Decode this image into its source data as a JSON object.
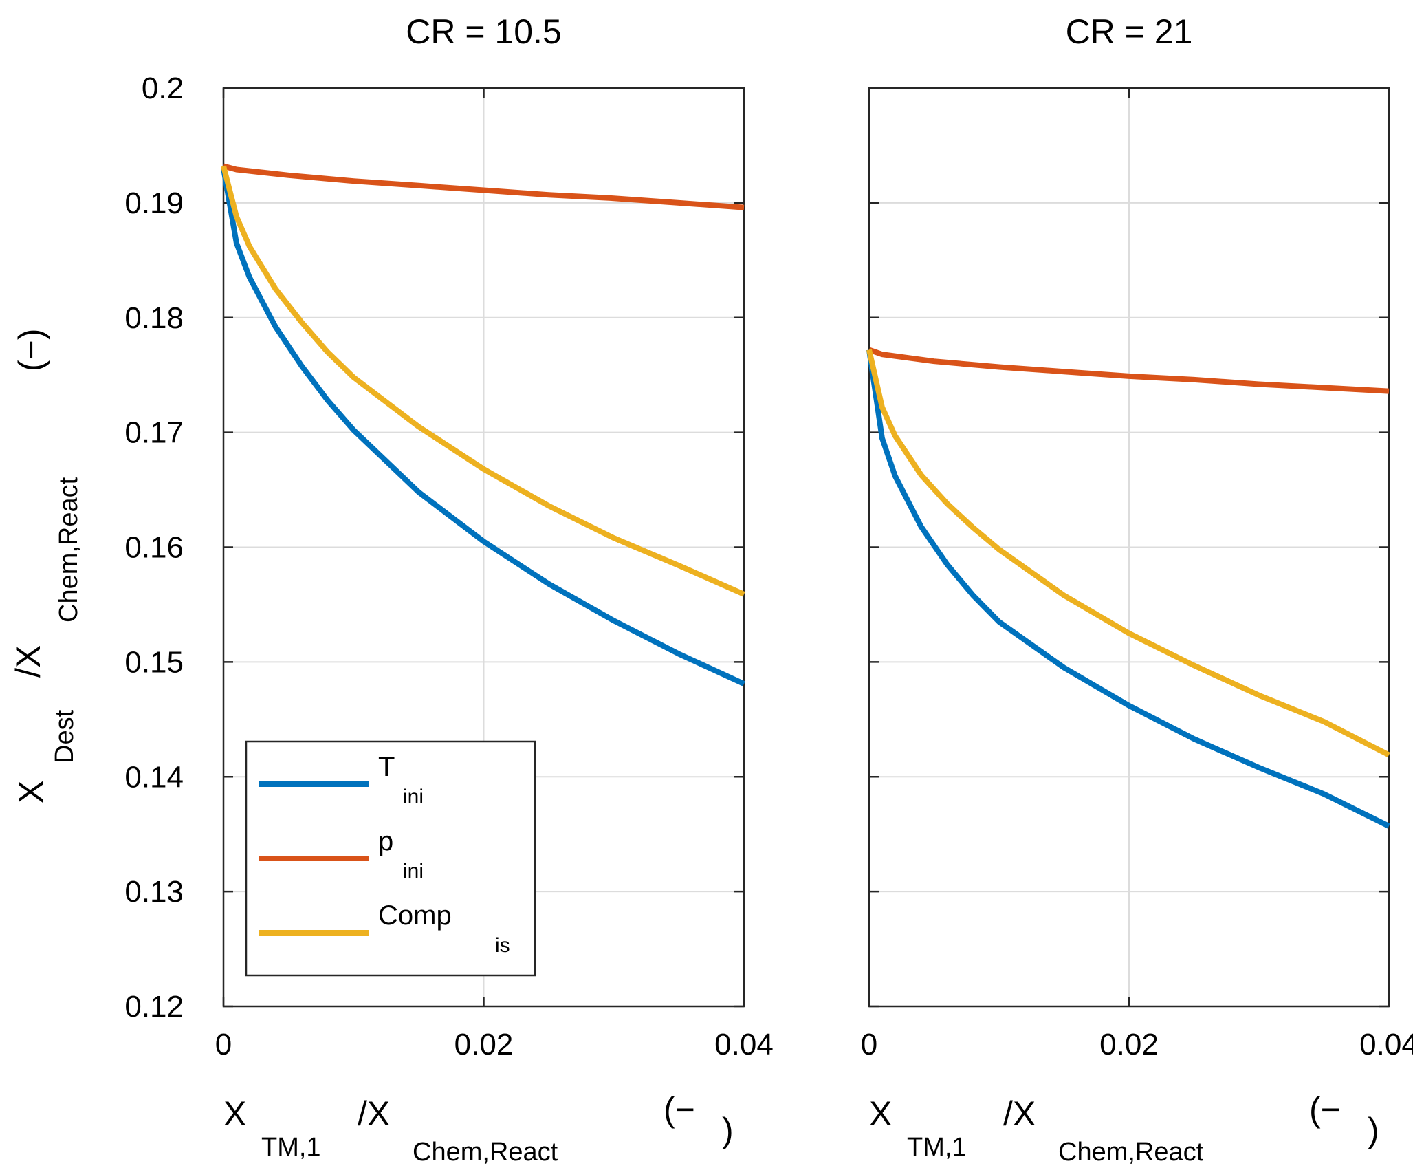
{
  "chart_data": [
    {
      "type": "line",
      "title": "CR = 10.5",
      "xlim": [
        0,
        0.04
      ],
      "ylim": [
        0.12,
        0.2
      ],
      "x_ticks": [
        "0",
        "0.02",
        "0.04"
      ],
      "y_ticks": [
        "0.12",
        "0.13",
        "0.14",
        "0.15",
        "0.16",
        "0.17",
        "0.18",
        "0.19",
        "0.2"
      ],
      "grid": true,
      "xlabel": {
        "main": "X",
        "sub": "TM,1",
        "mid": "/X",
        "sub2": "Chem,React",
        "unit_open": "(−",
        "unit_close": ")"
      },
      "ylabel": {
        "main": "X",
        "sub": "Dest",
        "mid": "/X",
        "sub2": "Chem,React",
        "unit": "(−)"
      },
      "legend": {
        "position": "bottom-left",
        "entries": [
          {
            "main": "T",
            "sub": "ini",
            "color": "#0072BD"
          },
          {
            "main": "p",
            "sub": "ini",
            "color": "#D95319"
          },
          {
            "main": "Comp",
            "sub": "is",
            "color": "#EDB120"
          }
        ]
      },
      "series": [
        {
          "color": "#0072BD",
          "x": [
            0,
            0.001,
            0.002,
            0.004,
            0.006,
            0.008,
            0.01,
            0.015,
            0.02,
            0.025,
            0.03,
            0.035,
            0.04
          ],
          "y": [
            0.193,
            0.1865,
            0.1835,
            0.1792,
            0.1758,
            0.1728,
            0.1702,
            0.1648,
            0.1605,
            0.1568,
            0.1536,
            0.1507,
            0.1481
          ]
        },
        {
          "color": "#D95319",
          "x": [
            0,
            0.001,
            0.005,
            0.01,
            0.015,
            0.02,
            0.025,
            0.03,
            0.035,
            0.04
          ],
          "y": [
            0.1932,
            0.1929,
            0.1924,
            0.1919,
            0.1915,
            0.1911,
            0.1907,
            0.1904,
            0.19,
            0.1896
          ]
        },
        {
          "color": "#EDB120",
          "x": [
            0,
            0.001,
            0.002,
            0.004,
            0.006,
            0.008,
            0.01,
            0.015,
            0.02,
            0.025,
            0.03,
            0.035,
            0.04
          ],
          "y": [
            0.1932,
            0.1888,
            0.1862,
            0.1825,
            0.1796,
            0.177,
            0.1748,
            0.1705,
            0.1668,
            0.1636,
            0.1608,
            0.1584,
            0.1559
          ]
        }
      ]
    },
    {
      "type": "line",
      "title": "CR = 21",
      "xlim": [
        0,
        0.04
      ],
      "ylim": [
        0.12,
        0.2
      ],
      "x_ticks": [
        "0",
        "0.02",
        "0.04"
      ],
      "y_ticks": [],
      "grid": true,
      "xlabel": {
        "main": "X",
        "sub": "TM,1",
        "mid": "/X",
        "sub2": "Chem,React",
        "unit_open": "(−",
        "unit_close": ")"
      },
      "series": [
        {
          "color": "#0072BD",
          "x": [
            0,
            0.001,
            0.002,
            0.004,
            0.006,
            0.008,
            0.01,
            0.015,
            0.02,
            0.025,
            0.03,
            0.035,
            0.04
          ],
          "y": [
            0.1772,
            0.1695,
            0.1662,
            0.1618,
            0.1585,
            0.1558,
            0.1535,
            0.1495,
            0.1462,
            0.1433,
            0.1408,
            0.1385,
            0.1357
          ]
        },
        {
          "color": "#D95319",
          "x": [
            0,
            0.001,
            0.005,
            0.01,
            0.015,
            0.02,
            0.025,
            0.03,
            0.035,
            0.04
          ],
          "y": [
            0.1772,
            0.1768,
            0.1762,
            0.1757,
            0.1753,
            0.1749,
            0.1746,
            0.1742,
            0.1739,
            0.1736
          ]
        },
        {
          "color": "#EDB120",
          "x": [
            0,
            0.001,
            0.002,
            0.004,
            0.006,
            0.008,
            0.01,
            0.015,
            0.02,
            0.025,
            0.03,
            0.035,
            0.04
          ],
          "y": [
            0.1772,
            0.1722,
            0.1697,
            0.1663,
            0.1638,
            0.1617,
            0.1598,
            0.1558,
            0.1525,
            0.1497,
            0.1471,
            0.1448,
            0.1419
          ]
        }
      ]
    }
  ]
}
